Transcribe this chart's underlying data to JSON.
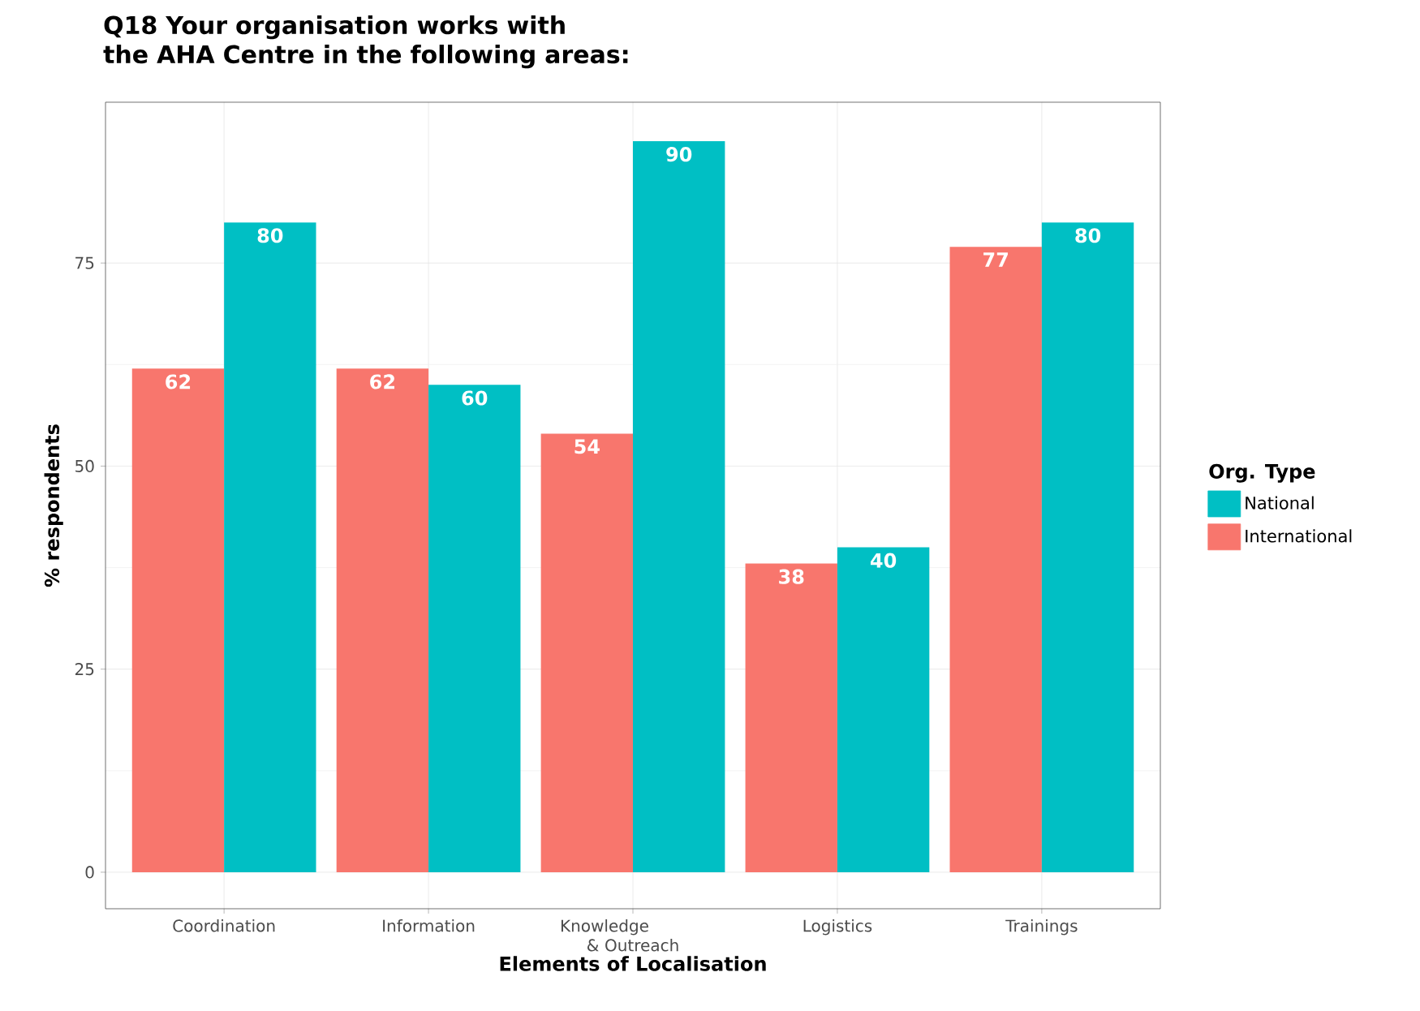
{
  "chart_data": {
    "type": "bar",
    "title": "Q18 Your organisation works with\n the AHA Centre in the following areas:",
    "xlabel": "Elements of Localisation",
    "ylabel": "% respondents",
    "legend_title": "Org. Type",
    "categories": [
      "Coordination",
      "Information",
      "Knowledge\n& Outreach",
      "Logistics",
      "Trainings"
    ],
    "series": [
      {
        "name": "International",
        "color": "#f8766d",
        "values": [
          62,
          62,
          54,
          38,
          77
        ],
        "value_labels": [
          "62",
          "62",
          "54",
          "38",
          "77"
        ]
      },
      {
        "name": "National",
        "color": "#00bfc4",
        "values": [
          80,
          60,
          90,
          40,
          80
        ],
        "value_labels": [
          "80",
          "60",
          "90",
          "40",
          "80"
        ]
      }
    ],
    "ylim": [
      -4.5,
      94.8
    ],
    "yticks": [
      0,
      25,
      50,
      75
    ],
    "grid": true,
    "legend": "right"
  }
}
